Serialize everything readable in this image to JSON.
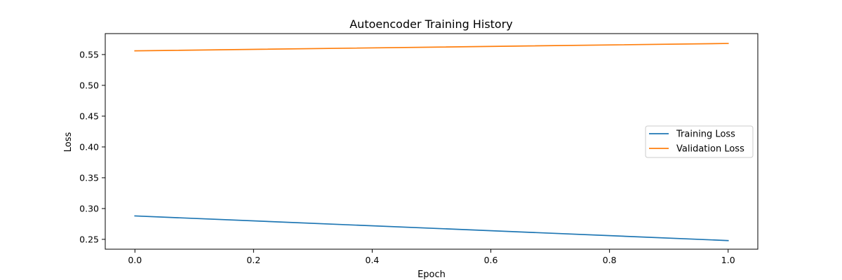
{
  "chart_data": {
    "type": "line",
    "title": "Autoencoder Training History",
    "xlabel": "Epoch",
    "ylabel": "Loss",
    "xlim": [
      -0.05,
      1.05
    ],
    "ylim": [
      0.234,
      0.584
    ],
    "xticks": [
      0.0,
      0.2,
      0.4,
      0.6,
      0.8,
      1.0
    ],
    "xtick_labels": [
      "0.0",
      "0.2",
      "0.4",
      "0.6",
      "0.8",
      "1.0"
    ],
    "yticks": [
      0.25,
      0.3,
      0.35,
      0.4,
      0.45,
      0.5,
      0.55
    ],
    "ytick_labels": [
      "0.25",
      "0.30",
      "0.35",
      "0.40",
      "0.45",
      "0.50",
      "0.55"
    ],
    "grid": false,
    "legend_position": "center-right",
    "series": [
      {
        "name": "Training Loss",
        "color": "#1f77b4",
        "x": [
          0,
          1
        ],
        "y": [
          0.288,
          0.248
        ]
      },
      {
        "name": "Validation Loss",
        "color": "#ff7f0e",
        "x": [
          0,
          1
        ],
        "y": [
          0.556,
          0.568
        ]
      }
    ]
  }
}
